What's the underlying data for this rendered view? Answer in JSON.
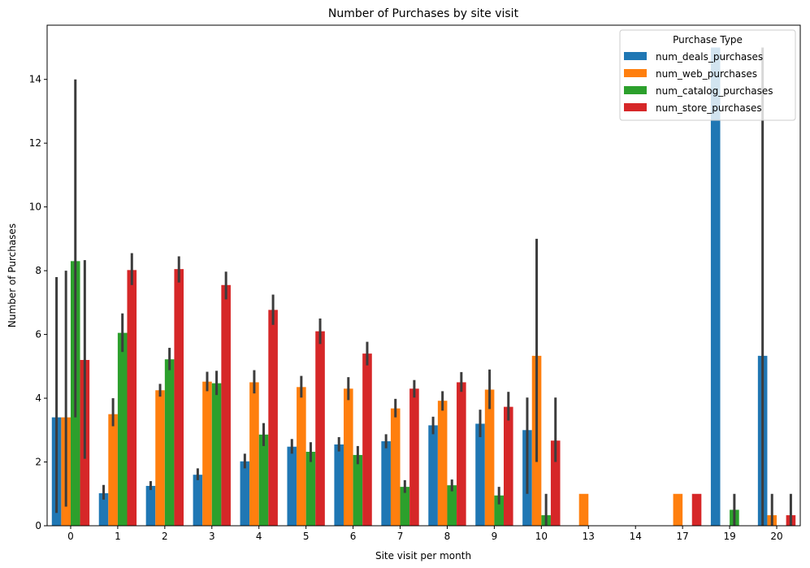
{
  "chart_data": {
    "type": "bar",
    "title": "Number of Purchases by site visit",
    "xlabel": "Site visit per month",
    "ylabel": "Number of Purchases",
    "ylim": [
      0,
      15.7
    ],
    "yticks": [
      0,
      2,
      4,
      6,
      8,
      10,
      12,
      14
    ],
    "categories": [
      "0",
      "1",
      "2",
      "3",
      "4",
      "5",
      "6",
      "7",
      "8",
      "9",
      "10",
      "13",
      "14",
      "17",
      "19",
      "20"
    ],
    "legend": {
      "title": "Purchase Type",
      "placement": "top-right"
    },
    "error_bar_color": "#3c3c3c",
    "series": [
      {
        "name": "num_deals_purchases",
        "color": "#1f77b4",
        "values": [
          3.4,
          1.02,
          1.25,
          1.6,
          2.02,
          2.48,
          2.55,
          2.65,
          3.15,
          3.2,
          3.0,
          null,
          null,
          null,
          15.0,
          5.33
        ],
        "err_low": [
          0.4,
          0.82,
          1.12,
          1.43,
          1.8,
          2.26,
          2.33,
          2.43,
          2.87,
          2.78,
          1.0,
          null,
          null,
          null,
          null,
          0.0
        ],
        "err_high": [
          7.8,
          1.28,
          1.4,
          1.8,
          2.26,
          2.72,
          2.78,
          2.87,
          3.42,
          3.64,
          4.02,
          null,
          null,
          null,
          null,
          15.0
        ]
      },
      {
        "name": "num_web_purchases",
        "color": "#ff7f0e",
        "values": [
          3.4,
          3.5,
          4.25,
          4.52,
          4.5,
          4.35,
          4.3,
          3.68,
          3.92,
          4.27,
          5.33,
          1.0,
          null,
          1.0,
          null,
          0.33
        ],
        "err_low": [
          0.6,
          3.12,
          4.05,
          4.22,
          4.15,
          4.02,
          3.94,
          3.4,
          3.61,
          3.66,
          2.0,
          null,
          null,
          null,
          null,
          0.0
        ],
        "err_high": [
          8.0,
          4.0,
          4.45,
          4.83,
          4.88,
          4.7,
          4.66,
          3.98,
          4.22,
          4.9,
          9.0,
          null,
          null,
          null,
          null,
          1.0
        ]
      },
      {
        "name": "num_catalog_purchases",
        "color": "#2ca02c",
        "values": [
          8.3,
          6.05,
          5.22,
          4.47,
          2.86,
          2.32,
          2.22,
          1.22,
          1.27,
          0.95,
          0.33,
          null,
          null,
          null,
          0.5,
          null
        ],
        "err_low": [
          3.4,
          5.45,
          4.88,
          4.1,
          2.5,
          2.0,
          1.93,
          1.03,
          1.08,
          0.67,
          0.0,
          null,
          null,
          null,
          0.0,
          null
        ],
        "err_high": [
          14.0,
          6.66,
          5.58,
          4.86,
          3.22,
          2.62,
          2.5,
          1.43,
          1.45,
          1.22,
          1.0,
          null,
          null,
          null,
          1.0,
          null
        ]
      },
      {
        "name": "num_store_purchases",
        "color": "#d62728",
        "values": [
          5.2,
          8.02,
          8.05,
          7.55,
          6.77,
          6.1,
          5.4,
          4.3,
          4.5,
          3.73,
          2.67,
          null,
          null,
          1.0,
          null,
          0.33
        ],
        "err_low": [
          2.1,
          7.55,
          7.63,
          7.1,
          6.3,
          5.7,
          5.03,
          4.02,
          4.2,
          3.3,
          2.0,
          null,
          null,
          null,
          null,
          0.0
        ],
        "err_high": [
          8.33,
          8.55,
          8.45,
          7.97,
          7.25,
          6.5,
          5.77,
          4.57,
          4.82,
          4.2,
          4.02,
          null,
          null,
          null,
          null,
          1.0
        ]
      }
    ]
  }
}
